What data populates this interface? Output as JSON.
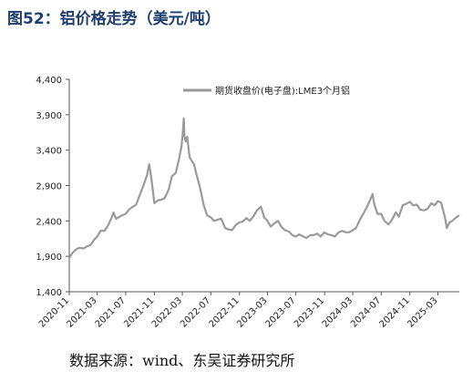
{
  "figure_title": "图52：铝价格走势（美元/吨）",
  "source_note": "数据来源：wind、东吴证券研究所",
  "colors": {
    "title": "#1f3e6e",
    "line": "#9a9a9a",
    "axis": "#555555"
  },
  "chart_data": {
    "type": "line",
    "title": "",
    "xlabel": "",
    "ylabel": "",
    "ylim": [
      1400,
      4400
    ],
    "yticks": [
      "1,400",
      "1,900",
      "2,400",
      "2,900",
      "3,400",
      "3,900",
      "4,400"
    ],
    "ytick_values": [
      1400,
      1900,
      2400,
      2900,
      3400,
      3900,
      4400
    ],
    "xlim": [
      "2020-11",
      "2025-06"
    ],
    "xticks": [
      "2020-11",
      "2021-03",
      "2021-07",
      "2021-11",
      "2022-03",
      "2022-07",
      "2022-11",
      "2023-03",
      "2023-07",
      "2023-11",
      "2024-03",
      "2024-07",
      "2024-11",
      "2025-03"
    ],
    "grid": false,
    "legend": "top-right",
    "series": [
      {
        "name": "期货收盘价(电子盘):LME3个月铝",
        "x": [
          "2020-11-01",
          "2020-11-15",
          "2020-12-01",
          "2020-12-15",
          "2021-01-01",
          "2021-01-15",
          "2021-02-01",
          "2021-02-15",
          "2021-03-01",
          "2021-03-15",
          "2021-04-01",
          "2021-04-15",
          "2021-05-01",
          "2021-05-10",
          "2021-05-20",
          "2021-06-01",
          "2021-06-15",
          "2021-07-01",
          "2021-07-15",
          "2021-08-01",
          "2021-08-15",
          "2021-09-01",
          "2021-09-15",
          "2021-10-01",
          "2021-10-10",
          "2021-10-20",
          "2021-11-01",
          "2021-11-15",
          "2021-12-01",
          "2021-12-15",
          "2022-01-01",
          "2022-01-15",
          "2022-02-01",
          "2022-02-15",
          "2022-02-25",
          "2022-03-03",
          "2022-03-07",
          "2022-03-10",
          "2022-03-15",
          "2022-03-22",
          "2022-04-01",
          "2022-04-10",
          "2022-04-20",
          "2022-05-01",
          "2022-05-15",
          "2022-06-01",
          "2022-06-15",
          "2022-07-01",
          "2022-07-15",
          "2022-08-01",
          "2022-08-15",
          "2022-09-01",
          "2022-09-15",
          "2022-10-01",
          "2022-10-15",
          "2022-11-01",
          "2022-11-15",
          "2022-12-01",
          "2022-12-15",
          "2023-01-01",
          "2023-01-15",
          "2023-02-01",
          "2023-02-15",
          "2023-03-01",
          "2023-03-15",
          "2023-04-01",
          "2023-04-15",
          "2023-05-01",
          "2023-05-15",
          "2023-06-01",
          "2023-06-15",
          "2023-07-01",
          "2023-07-15",
          "2023-08-01",
          "2023-08-15",
          "2023-09-01",
          "2023-09-15",
          "2023-10-01",
          "2023-10-15",
          "2023-11-01",
          "2023-11-15",
          "2023-12-01",
          "2023-12-15",
          "2024-01-01",
          "2024-01-15",
          "2024-02-01",
          "2024-02-15",
          "2024-03-01",
          "2024-03-15",
          "2024-04-01",
          "2024-04-15",
          "2024-05-01",
          "2024-05-15",
          "2024-05-25",
          "2024-06-01",
          "2024-06-15",
          "2024-07-01",
          "2024-07-15",
          "2024-08-01",
          "2024-08-15",
          "2024-09-01",
          "2024-09-15",
          "2024-10-01",
          "2024-10-15",
          "2024-11-01",
          "2024-11-15",
          "2024-12-01",
          "2024-12-15",
          "2025-01-01",
          "2025-01-15",
          "2025-02-01",
          "2025-02-15",
          "2025-03-01",
          "2025-03-15",
          "2025-04-01",
          "2025-04-08",
          "2025-04-20",
          "2025-05-01",
          "2025-05-15",
          "2025-06-01"
        ],
        "values": [
          1880,
          1950,
          2000,
          2020,
          2010,
          2040,
          2060,
          2130,
          2180,
          2260,
          2260,
          2330,
          2440,
          2520,
          2430,
          2450,
          2480,
          2500,
          2560,
          2600,
          2630,
          2780,
          2900,
          3050,
          3200,
          2980,
          2650,
          2690,
          2700,
          2720,
          2840,
          3030,
          3080,
          3280,
          3450,
          3650,
          3850,
          3600,
          3520,
          3590,
          3300,
          3250,
          3200,
          3050,
          2880,
          2620,
          2480,
          2450,
          2400,
          2420,
          2430,
          2300,
          2280,
          2270,
          2340,
          2380,
          2390,
          2440,
          2400,
          2470,
          2550,
          2600,
          2450,
          2400,
          2320,
          2370,
          2400,
          2310,
          2270,
          2250,
          2200,
          2180,
          2210,
          2180,
          2160,
          2200,
          2200,
          2220,
          2180,
          2240,
          2210,
          2200,
          2180,
          2240,
          2260,
          2240,
          2240,
          2270,
          2300,
          2420,
          2500,
          2600,
          2700,
          2780,
          2640,
          2500,
          2500,
          2400,
          2350,
          2410,
          2520,
          2460,
          2620,
          2640,
          2670,
          2620,
          2630,
          2560,
          2550,
          2570,
          2650,
          2620,
          2680,
          2660,
          2440,
          2300,
          2380,
          2400,
          2440,
          2480
        ]
      }
    ]
  }
}
